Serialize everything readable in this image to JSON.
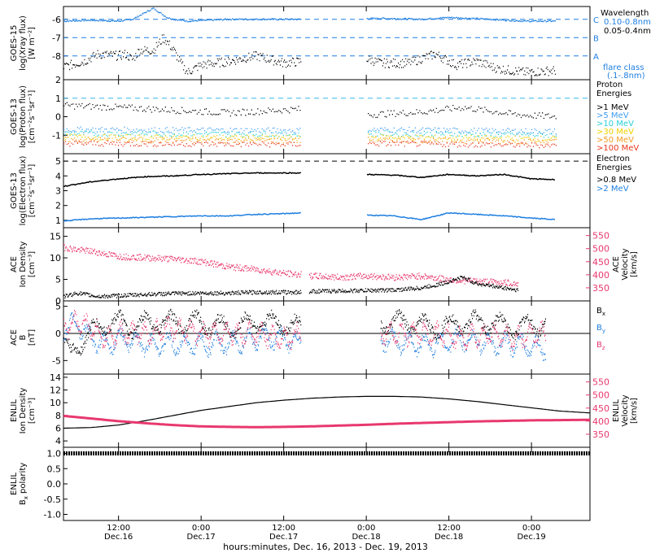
{
  "colors": {
    "black": "#000000",
    "blue": "#1f7fe0",
    "cyan_line": "#37b9e8",
    "pink": "#e8386e",
    "green": "#35c83a",
    "cyan": "#2ad0d8",
    "yellow": "#f0d000",
    "orange": "#f59a1e",
    "red": "#e8371e",
    "lightblue": "#3f9cf0"
  },
  "x_axis": {
    "title": "hours:minutes, Dec. 16, 2013 - Dec. 19, 2013",
    "start_hour": 4,
    "end_hour": 80.5,
    "ticks": [
      {
        "hour": 12,
        "time": "12:00",
        "date": "Dec.16"
      },
      {
        "hour": 24,
        "time": "0:00",
        "date": "Dec.17"
      },
      {
        "hour": 36,
        "time": "12:00",
        "date": "Dec.17"
      },
      {
        "hour": 48,
        "time": "0:00",
        "date": "Dec.18"
      },
      {
        "hour": 60,
        "time": "12:00",
        "date": "Dec.18"
      },
      {
        "hour": 72,
        "time": "0:00",
        "date": "Dec.19"
      }
    ]
  },
  "panels": {
    "xray": {
      "ylabel": [
        "GOES-15",
        "log(Xray flux)",
        "[W m⁻²]"
      ],
      "yticks": [
        "-6",
        "-7",
        "-8"
      ],
      "legend_title": "Wavelength",
      "legend": [
        "0.10-0.8nm",
        "0.05-0.4nm"
      ],
      "flare_levels": [
        "C",
        "B",
        "A"
      ],
      "flare_note": [
        "flare class",
        "(.1-.8nm)"
      ]
    },
    "proton": {
      "ylabel": [
        "GOES-13",
        "log(Proton flux)",
        "[cm⁻²s⁻¹sr⁻¹]"
      ],
      "yticks": [
        "2",
        "1",
        "0",
        "-1"
      ],
      "legend_title": [
        "Proton",
        "Energies"
      ],
      "legend": [
        ">1 MeV",
        ">5 MeV",
        ">10 MeV",
        ">30 MeV",
        ">50 MeV",
        ">100 MeV"
      ]
    },
    "electron": {
      "ylabel": [
        "GOES-13",
        "log(Electron flux)",
        "[cm⁻²s⁻¹sr⁻¹]"
      ],
      "yticks": [
        "5",
        "4",
        "3",
        "2",
        "1"
      ],
      "legend_title": [
        "Electron",
        "Energies"
      ],
      "legend": [
        ">0.8 MeV",
        ">2 MeV"
      ]
    },
    "ace_plasma": {
      "ylabel": [
        "ACE",
        "Ion Density",
        "[cm⁻³]"
      ],
      "yticks": [
        "15",
        "10",
        "5",
        "0"
      ],
      "rlabel": [
        "ACE",
        "Velocity",
        "[km/s]"
      ],
      "rticks": [
        "550",
        "500",
        "450",
        "400",
        "350"
      ]
    },
    "ace_b": {
      "ylabel": [
        "ACE",
        "B",
        "[nT]"
      ],
      "yticks": [
        "5",
        "0",
        "-5"
      ],
      "legend": [
        "B",
        "B",
        "B"
      ],
      "legend_sub": [
        "x",
        "y",
        "z"
      ]
    },
    "enlil_plasma": {
      "ylabel": [
        "ENLIL",
        "Ion Density",
        "[cm⁻³]"
      ],
      "yticks": [
        "14",
        "12",
        "10",
        "8",
        "6",
        "4"
      ],
      "rlabel": [
        "ENLIL",
        "Velocity",
        "[km/s]"
      ],
      "rticks": [
        "550",
        "500",
        "450",
        "400",
        "350"
      ]
    },
    "enlil_pol": {
      "ylabel": [
        "ENLIL",
        "B",
        "polarity"
      ],
      "ylabel_sub": "x",
      "yticks": [
        "1.0",
        "0.5",
        "0.0",
        "-0.5",
        "-1.0"
      ]
    }
  },
  "chart_data": [
    {
      "type": "scatter",
      "panel": "xray",
      "ylim": [
        -9.3,
        -5.3
      ],
      "series": [
        {
          "name": "0.10-0.8nm",
          "x": [
            4,
            8,
            12,
            14,
            17,
            19,
            20,
            22,
            28,
            36,
            38,
            42,
            50,
            56,
            60,
            66,
            71,
            75.5
          ],
          "y": [
            -6.1,
            -6.05,
            -6.1,
            -6.0,
            -5.4,
            -5.9,
            -6.0,
            -6.1,
            -6.0,
            -6.0,
            -6.0,
            -6.0,
            -5.95,
            -6.0,
            -5.9,
            -6.0,
            -6.1,
            -6.1
          ]
        },
        {
          "name": "0.05-0.4nm",
          "x": [
            4,
            7,
            9,
            12,
            13,
            14,
            15,
            17,
            18.5,
            20,
            21,
            22,
            24,
            28,
            32,
            36,
            38.5,
            42,
            46,
            50,
            54,
            58,
            61,
            64,
            67,
            71,
            75.5
          ],
          "y": [
            -8.6,
            -8.3,
            -7.9,
            -8.0,
            -7.9,
            -8.2,
            -7.7,
            -7.7,
            -7.0,
            -7.7,
            -8.4,
            -8.9,
            -8.5,
            -8.3,
            -8.0,
            -8.4,
            -8.3,
            -8.6,
            -7.9,
            -8.4,
            -8.4,
            -7.9,
            -8.5,
            -8.3,
            -8.7,
            -8.9,
            -8.8
          ]
        }
      ],
      "flare_thresholds": {
        "C": -6,
        "B": -7,
        "A": -8
      }
    },
    {
      "type": "scatter",
      "panel": "proton",
      "ylim": [
        -2,
        2
      ],
      "series": [
        {
          "name": ">1 MeV",
          "x": [
            4,
            12,
            20,
            28,
            38,
            48,
            56,
            62,
            70,
            75.5
          ],
          "y": [
            0.6,
            0.5,
            0.35,
            0.2,
            0.4,
            0.1,
            0.25,
            0.5,
            0.1,
            0.0
          ]
        },
        {
          "name": ">5 MeV",
          "x": [
            4,
            38,
            48,
            75.5
          ],
          "y": [
            -0.7,
            -0.75,
            -0.7,
            -0.8
          ]
        },
        {
          "name": ">10 MeV",
          "x": [
            4,
            38,
            48,
            75.5
          ],
          "y": [
            -0.9,
            -0.95,
            -0.9,
            -1.0
          ]
        },
        {
          "name": ">30 MeV",
          "x": [
            4,
            38,
            48,
            75.5
          ],
          "y": [
            -1.1,
            -1.15,
            -1.1,
            -1.2
          ]
        },
        {
          "name": ">50 MeV",
          "x": [
            4,
            38,
            48,
            75.5
          ],
          "y": [
            -1.25,
            -1.3,
            -1.25,
            -1.35
          ]
        },
        {
          "name": ">100 MeV",
          "x": [
            4,
            38,
            48,
            75.5
          ],
          "y": [
            -1.45,
            -1.5,
            -1.45,
            -1.55
          ]
        }
      ],
      "threshold": 1
    },
    {
      "type": "line",
      "panel": "electron",
      "ylim": [
        0.5,
        5.5
      ],
      "series": [
        {
          "name": ">0.8 MeV",
          "x": [
            4,
            8,
            12,
            16,
            20,
            24,
            28,
            32,
            36,
            38.5,
            48,
            52,
            56,
            60,
            64,
            68,
            72,
            75.5
          ],
          "y": [
            3.3,
            3.6,
            3.8,
            3.95,
            4.0,
            4.1,
            4.15,
            4.2,
            4.2,
            4.2,
            4.1,
            4.05,
            3.9,
            4.1,
            4.0,
            4.1,
            3.8,
            3.75
          ]
        },
        {
          "name": ">2 MeV",
          "x": [
            4,
            8,
            12,
            16,
            20,
            24,
            28,
            32,
            36,
            38.5,
            48,
            52,
            56,
            60,
            64,
            68,
            72,
            75.5
          ],
          "y": [
            0.95,
            1.1,
            1.15,
            1.2,
            1.25,
            1.3,
            1.3,
            1.4,
            1.45,
            1.5,
            1.35,
            1.3,
            1.05,
            1.5,
            1.4,
            1.3,
            1.15,
            1.05
          ]
        }
      ],
      "threshold": 5
    },
    {
      "type": "scatter",
      "panel": "ace_plasma",
      "ylim": [
        0,
        17
      ],
      "y2lim": [
        300,
        580
      ],
      "series": [
        {
          "name": "Ion Density",
          "x": [
            4,
            6,
            9,
            12,
            16,
            20,
            24,
            28,
            32,
            36,
            38.5,
            40,
            44,
            48,
            52,
            56,
            59,
            62,
            64,
            66,
            68,
            70
          ],
          "y": [
            1.0,
            1.8,
            1.0,
            1.2,
            1.5,
            1.7,
            1.8,
            1.8,
            2.0,
            2.0,
            2.0,
            2.2,
            2.3,
            2.4,
            2.5,
            3.0,
            4.0,
            5.5,
            4.0,
            3.5,
            3.0,
            2.5
          ]
        },
        {
          "name": "Velocity",
          "x": [
            4,
            6,
            8,
            10,
            12,
            16,
            20,
            24,
            28,
            32,
            36,
            38.5,
            40,
            44,
            48,
            52,
            56,
            60,
            64,
            68,
            70
          ],
          "y": [
            505,
            495,
            490,
            480,
            470,
            465,
            460,
            450,
            430,
            420,
            405,
            400,
            395,
            390,
            395,
            390,
            395,
            380,
            375,
            370,
            365
          ]
        }
      ]
    },
    {
      "type": "scatter",
      "panel": "ace_b",
      "ylim": [
        -7.5,
        6
      ],
      "series": [
        {
          "name": "Bx",
          "x": [
            4,
            5,
            6,
            8,
            10,
            12,
            14,
            16,
            18,
            20,
            24,
            28,
            32,
            36,
            38.5,
            50,
            54,
            58,
            62,
            66,
            70,
            74
          ],
          "y": [
            -2,
            -4,
            -2,
            0,
            2,
            2,
            1,
            2,
            2,
            2,
            2,
            1,
            2,
            2,
            1,
            2,
            2,
            1,
            2,
            2,
            1,
            2
          ]
        },
        {
          "name": "By",
          "x": [
            4,
            6,
            8,
            10,
            12,
            16,
            20,
            24,
            28,
            32,
            36,
            38.5,
            50,
            54,
            58,
            62,
            66,
            70,
            74
          ],
          "y": [
            1,
            2,
            -1,
            -2,
            -1,
            -2,
            -2,
            -2,
            -2,
            -1,
            -1,
            -2,
            -1,
            -2,
            -2,
            -1,
            -2,
            -2,
            -3
          ]
        },
        {
          "name": "Bz",
          "x": [
            4,
            6,
            8,
            10,
            12,
            16,
            20,
            24,
            28,
            32,
            36,
            38.5,
            50,
            54,
            58,
            62,
            66,
            70,
            74
          ],
          "y": [
            1,
            2,
            1,
            -1,
            0,
            0,
            1,
            0,
            0,
            0,
            -1,
            0,
            0,
            0,
            0,
            -1,
            0,
            -1,
            0
          ]
        }
      ]
    },
    {
      "type": "line",
      "panel": "enlil_plasma",
      "ylim": [
        3,
        14.5
      ],
      "y2lim": [
        300,
        580
      ],
      "series": [
        {
          "name": "Ion Density",
          "x": [
            4,
            8,
            12,
            16,
            20,
            24,
            28,
            32,
            36,
            40,
            44,
            48,
            52,
            56,
            60,
            64,
            68,
            72,
            76,
            80.5
          ],
          "y": [
            6.0,
            6.1,
            6.5,
            7.2,
            8.0,
            8.8,
            9.4,
            10.0,
            10.4,
            10.7,
            10.9,
            11.0,
            11.0,
            10.9,
            10.6,
            10.2,
            9.7,
            9.2,
            8.7,
            8.4
          ]
        },
        {
          "name": "Velocity",
          "x": [
            4,
            8,
            12,
            16,
            20,
            24,
            28,
            32,
            36,
            40,
            44,
            48,
            52,
            56,
            60,
            64,
            68,
            72,
            76,
            80.5
          ],
          "y": [
            420,
            410,
            400,
            392,
            385,
            380,
            378,
            377,
            378,
            380,
            383,
            386,
            390,
            393,
            396,
            399,
            401,
            403,
            404,
            405
          ]
        }
      ]
    },
    {
      "type": "scatter",
      "panel": "enlil_pol",
      "ylim": [
        -1.2,
        1.2
      ],
      "series": [
        {
          "name": "Bx polarity",
          "x": [
            4,
            80.5
          ],
          "y": [
            1,
            1
          ]
        }
      ]
    }
  ]
}
